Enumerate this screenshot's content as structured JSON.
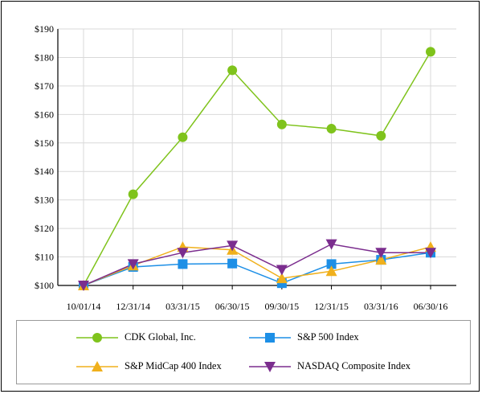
{
  "chart_data": {
    "type": "line",
    "title": "",
    "xlabel": "",
    "ylabel": "",
    "categories": [
      "10/01/14",
      "12/31/14",
      "03/31/15",
      "06/30/15",
      "09/30/15",
      "12/31/15",
      "03/31/16",
      "06/30/16"
    ],
    "ylim": [
      100,
      190
    ],
    "y_ticks": [
      "$100",
      "$110",
      "$120",
      "$130",
      "$140",
      "$150",
      "$160",
      "$170",
      "$180",
      "$190"
    ],
    "grid": true,
    "legend_position": "bottom",
    "series": [
      {
        "name": "CDK Global, Inc.",
        "marker": "circle",
        "color": "#7fc31c",
        "values": [
          100,
          132,
          152,
          175.5,
          156.5,
          155,
          152.5,
          182
        ]
      },
      {
        "name": "S&P 500 Index",
        "marker": "square",
        "color": "#1d8fe6",
        "values": [
          100,
          106.5,
          107.5,
          107.7,
          100.8,
          107.5,
          109,
          111.5
        ]
      },
      {
        "name": "S&P MidCap 400 Index",
        "marker": "triangle-up",
        "color": "#f0b01c",
        "values": [
          100,
          107,
          113.5,
          112.5,
          102.5,
          105,
          109,
          113.5
        ]
      },
      {
        "name": "NASDAQ Composite Index",
        "marker": "triangle-down",
        "color": "#7b2d8e",
        "values": [
          100,
          107.5,
          111.5,
          114,
          105.5,
          114.5,
          111.5,
          111.5
        ]
      }
    ]
  }
}
